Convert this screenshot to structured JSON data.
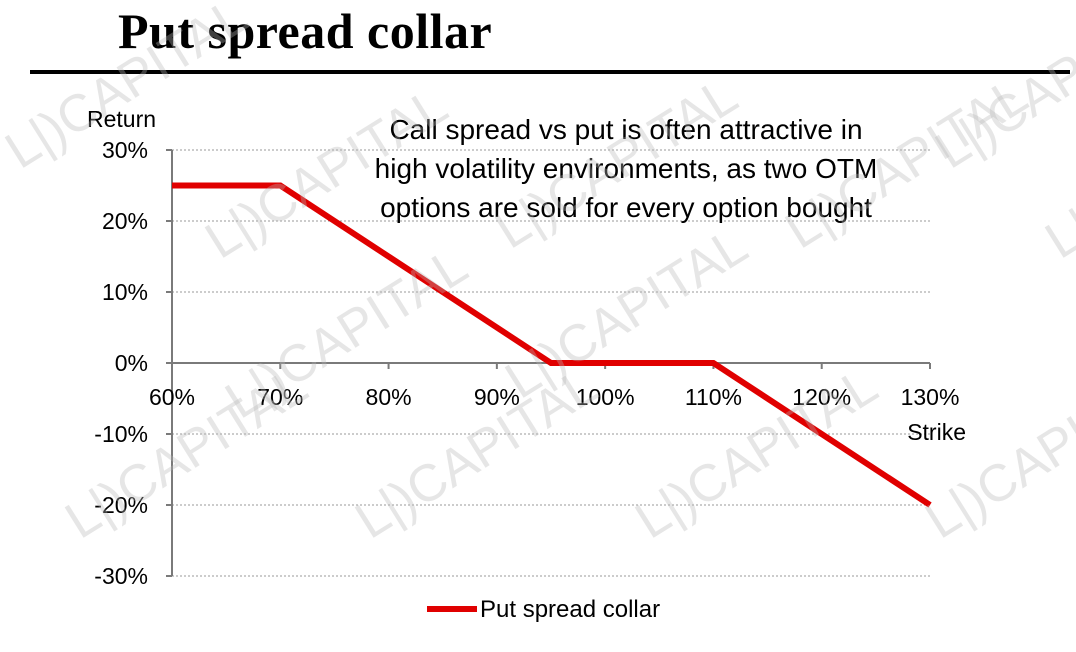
{
  "page": {
    "title": "Put spread collar"
  },
  "watermark": {
    "text": "L|)CAPITAL"
  },
  "chart_data": {
    "type": "line",
    "ylabel": "Return",
    "xlabel": "Strike",
    "xlim": [
      0.6,
      1.3
    ],
    "ylim": [
      -0.3,
      0.3
    ],
    "x_ticks": [
      0.6,
      0.7,
      0.8,
      0.9,
      1.0,
      1.1,
      1.2,
      1.3
    ],
    "x_tick_labels": [
      "60%",
      "70%",
      "80%",
      "90%",
      "100%",
      "110%",
      "120%",
      "130%"
    ],
    "y_ticks": [
      0.3,
      0.2,
      0.1,
      0.0,
      -0.1,
      -0.2,
      -0.3
    ],
    "y_tick_labels": [
      "30%",
      "20%",
      "10%",
      "0%",
      "-10%",
      "-20%",
      "-30%"
    ],
    "grid": true,
    "legend": "bottom",
    "annotation": [
      "Call spread vs put is often attractive in",
      "high volatility environments, as two OTM",
      "options are sold for every option bought"
    ],
    "series": [
      {
        "name": "Put spread collar",
        "color": "#e00000",
        "x": [
          0.6,
          0.7,
          0.95,
          1.1,
          1.3
        ],
        "y": [
          0.25,
          0.25,
          0.0,
          0.0,
          -0.2
        ]
      }
    ]
  }
}
